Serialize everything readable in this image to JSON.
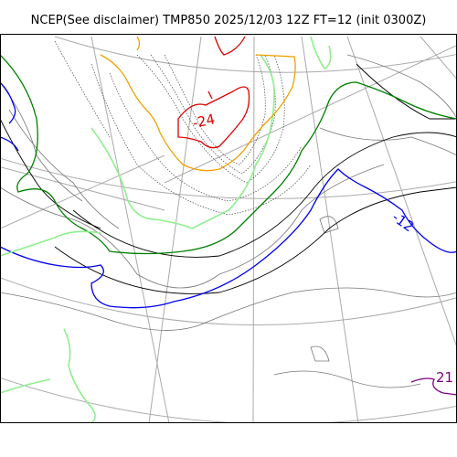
{
  "figure": {
    "title": "NCEP(See disclaimer) TMP850 2025/12/03 12Z FT=12 (init 0300Z)"
  },
  "map": {
    "colors": {
      "graticule": "#aaaaaa",
      "coast": "#000000",
      "isotherm_black": "#000000",
      "isotherm_blue": "#0000ee",
      "isotherm_green": "#008000",
      "isotherm_red": "#dd0000",
      "isotherm_orange": "#f0a000",
      "isotherm_purple": "#800080",
      "snow_lightgreen": "#90ee90"
    },
    "contour_labels": [
      {
        "text": "-24",
        "color": "#dd0000"
      },
      {
        "text": "-12",
        "color": "#0000ee"
      },
      {
        "text": "21",
        "color": "#800080"
      }
    ]
  }
}
